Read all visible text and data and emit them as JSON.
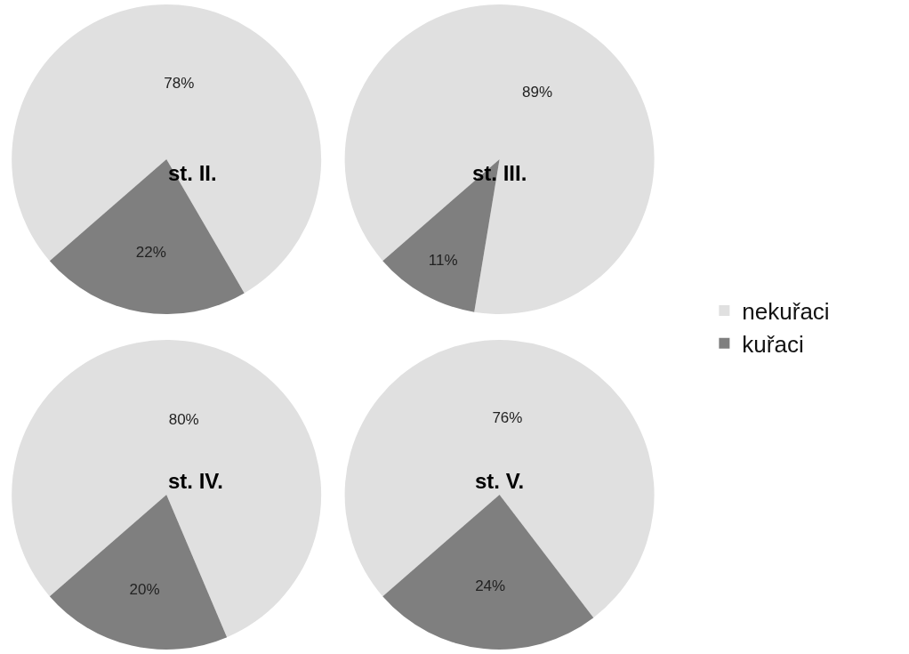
{
  "chart_data": [
    {
      "type": "pie",
      "title": "st. II.",
      "categories": [
        "nekuřaci",
        "kuřaci"
      ],
      "values": [
        78,
        22
      ],
      "colors": [
        "#e0e0e0",
        "#7f7f7f"
      ],
      "value_labels": [
        "78%",
        "22%"
      ],
      "legend": "right"
    },
    {
      "type": "pie",
      "title": "st. III.",
      "categories": [
        null,
        null
      ],
      "values": [
        89,
        11
      ],
      "colors": [
        "#e0e0e0",
        "#7f7f7f"
      ],
      "value_labels": [
        "89%",
        "11%"
      ]
    },
    {
      "type": "pie",
      "title": "st. IV.",
      "categories": [
        null,
        null
      ],
      "values": [
        80,
        20
      ],
      "colors": [
        "#e0e0e0",
        "#7f7f7f"
      ],
      "value_labels": [
        "80%",
        "20%"
      ]
    },
    {
      "type": "pie",
      "title": "st. V.",
      "categories": [
        null,
        null
      ],
      "values": [
        76,
        24
      ],
      "colors": [
        "#e0e0e0",
        "#7f7f7f"
      ],
      "value_labels": [
        "76%",
        "24%"
      ]
    }
  ]
}
